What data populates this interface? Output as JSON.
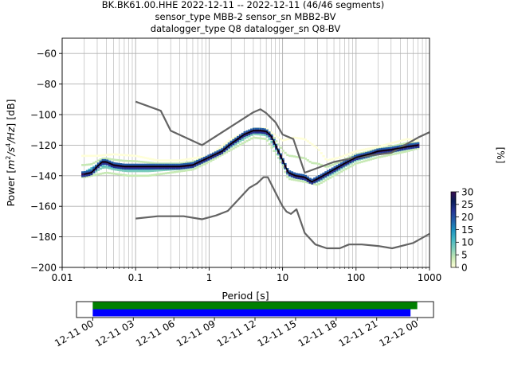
{
  "title_lines": [
    "BK.BK61.00.HHE   2022-12-11 -- 2022-12-11  (46/46 segments)",
    "sensor_type MBB-2 sensor_sn MBB2-BV",
    "datalogger_type Q8 datalogger_sn Q8-BV"
  ],
  "chart_data": [
    {
      "type": "heatmap",
      "xlabel": "Period [s]",
      "ylabel": "Power [m²/s⁴/Hz] [dB]",
      "xscale": "log",
      "xlim": [
        0.01,
        1000
      ],
      "ylim": [
        -200,
        -50
      ],
      "x_ticks": [
        0.01,
        0.1,
        1,
        10,
        100,
        1000
      ],
      "x_tick_labels": [
        "0.01",
        "0.1",
        "1",
        "10",
        "100",
        "1000"
      ],
      "y_ticks": [
        -200,
        -180,
        -160,
        -140,
        -120,
        -100,
        -80,
        -60
      ],
      "y_tick_labels": [
        "−200",
        "−180",
        "−160",
        "−140",
        "−120",
        "−100",
        "−80",
        "−60"
      ],
      "grid": true,
      "colorbar": {
        "label": "[%]",
        "range": [
          0,
          30
        ],
        "ticks": [
          0,
          5,
          10,
          15,
          20,
          25,
          30
        ],
        "tick_labels": [
          "0",
          "5",
          "10",
          "15",
          "20",
          "25",
          "30"
        ],
        "colormap": [
          "#ffffd9",
          "#c7e9b4",
          "#7fcdbb",
          "#41b6c4",
          "#1d91c0",
          "#225ea8",
          "#253494",
          "#081d58",
          "#3b0f52"
        ]
      },
      "series": [
        {
          "name": "",
          "color": "#646464",
          "points": [
            [
              0.1,
              -91.5
            ],
            [
              0.22,
              -97.5
            ],
            [
              0.3,
              -110.5
            ],
            [
              0.8,
              -120
            ],
            [
              4,
              -98.5
            ],
            [
              5,
              -96.5
            ],
            [
              6,
              -99
            ],
            [
              8,
              -105
            ],
            [
              10,
              -113
            ],
            [
              14,
              -116
            ],
            [
              20,
              -138
            ],
            [
              50,
              -131
            ],
            [
              100,
              -128
            ],
            [
              300,
              -125
            ],
            [
              700,
              -115
            ],
            [
              1000,
              -111.5
            ]
          ]
        },
        {
          "name": "",
          "color": "#646464",
          "points": [
            [
              0.1,
              -168
            ],
            [
              0.2,
              -166.5
            ],
            [
              0.45,
              -166.5
            ],
            [
              0.8,
              -168.5
            ],
            [
              1.25,
              -166
            ],
            [
              1.8,
              -163
            ],
            [
              3.5,
              -148
            ],
            [
              4.5,
              -145
            ],
            [
              5.5,
              -141
            ],
            [
              6.3,
              -141
            ],
            [
              8,
              -151
            ],
            [
              10,
              -160
            ],
            [
              11.3,
              -163.5
            ],
            [
              13,
              -165
            ],
            [
              15.5,
              -162
            ],
            [
              20,
              -177.5
            ],
            [
              28,
              -185
            ],
            [
              40,
              -187.5
            ],
            [
              60,
              -187.5
            ],
            [
              80,
              -185
            ],
            [
              120,
              -185
            ],
            [
              200,
              -186
            ],
            [
              310,
              -187.5
            ],
            [
              600,
              -184
            ],
            [
              1000,
              -178
            ]
          ]
        },
        {
          "name": "",
          "color": "#000000",
          "points": [
            [
              0.02,
              -139
            ],
            [
              0.025,
              -138
            ],
            [
              0.03,
              -134
            ],
            [
              0.035,
              -131
            ],
            [
              0.04,
              -131
            ],
            [
              0.05,
              -133
            ],
            [
              0.07,
              -134
            ],
            [
              0.1,
              -134
            ],
            [
              0.2,
              -134
            ],
            [
              0.4,
              -134
            ],
            [
              0.6,
              -133
            ],
            [
              1,
              -128
            ],
            [
              1.5,
              -124
            ],
            [
              2,
              -119
            ],
            [
              3,
              -113
            ],
            [
              4,
              -110.5
            ],
            [
              5,
              -110.5
            ],
            [
              6,
              -111
            ],
            [
              7,
              -114
            ],
            [
              9,
              -125
            ],
            [
              12,
              -138
            ],
            [
              15,
              -140
            ],
            [
              20,
              -141
            ],
            [
              25,
              -144
            ],
            [
              30,
              -142
            ],
            [
              50,
              -136
            ],
            [
              70,
              -132
            ],
            [
              100,
              -128
            ],
            [
              150,
              -126
            ],
            [
              200,
              -124
            ],
            [
              300,
              -123
            ],
            [
              500,
              -121
            ],
            [
              700,
              -120
            ]
          ]
        },
        {
          "name": "",
          "color": "#c7e9b4",
          "points": [
            [
              0.03,
              -127
            ],
            [
              0.05,
              -126
            ],
            [
              0.1,
              -127
            ],
            [
              0.2,
              -130
            ],
            [
              0.4,
              -130
            ],
            [
              1,
              -127
            ],
            [
              2,
              -116
            ],
            [
              4,
              -109
            ],
            [
              6,
              -109
            ],
            [
              10,
              -117
            ],
            [
              14,
              -115
            ],
            [
              20,
              -116
            ],
            [
              30,
              -122
            ],
            [
              40,
              -130
            ],
            [
              60,
              -128
            ],
            [
              100,
              -124
            ],
            [
              200,
              -121
            ],
            [
              500,
              -116
            ],
            [
              700,
              -117
            ]
          ]
        },
        {
          "name": "",
          "color": "#c7e9b4",
          "points": [
            [
              0.02,
              -141
            ],
            [
              0.04,
              -138
            ],
            [
              0.08,
              -140
            ],
            [
              0.15,
              -140
            ],
            [
              0.3,
              -138
            ],
            [
              0.6,
              -136
            ],
            [
              1,
              -131
            ],
            [
              2,
              -123
            ],
            [
              4,
              -115
            ],
            [
              6,
              -116
            ],
            [
              9,
              -129
            ],
            [
              12,
              -142
            ],
            [
              20,
              -144
            ],
            [
              30,
              -146
            ],
            [
              50,
              -140
            ],
            [
              100,
              -132
            ],
            [
              200,
              -128
            ],
            [
              500,
              -124
            ],
            [
              700,
              -122
            ]
          ]
        },
        {
          "name": "",
          "color": "#41b6c4",
          "points": [
            [
              0.02,
              -138
            ],
            [
              0.03,
              -133
            ],
            [
              0.05,
              -135
            ],
            [
              0.1,
              -136
            ],
            [
              0.2,
              -136
            ],
            [
              0.5,
              -135
            ],
            [
              1,
              -129
            ],
            [
              2,
              -121
            ],
            [
              4,
              -112
            ],
            [
              6,
              -113
            ],
            [
              8,
              -121
            ],
            [
              12,
              -140
            ],
            [
              20,
              -142
            ],
            [
              30,
              -144
            ],
            [
              60,
              -136
            ],
            [
              100,
              -129
            ],
            [
              300,
              -124
            ],
            [
              700,
              -121
            ]
          ]
        }
      ]
    },
    {
      "type": "timeline",
      "x_tick_labels": [
        "12-11 00",
        "12-11 03",
        "12-11 06",
        "12-11 09",
        "12-11 12",
        "12-11 15",
        "12-11 18",
        "12-11 21",
        "12-12 00"
      ],
      "x_ticks_hours": [
        0,
        3,
        6,
        9,
        12,
        15,
        18,
        21,
        24
      ],
      "xlim_hours": [
        -1.2,
        25.2
      ],
      "bars": [
        {
          "start_hour": 0,
          "end_hour": 24,
          "color": "#008000"
        },
        {
          "start_hour": 0,
          "end_hour": 23.5,
          "color": "#0000ff"
        }
      ]
    }
  ]
}
